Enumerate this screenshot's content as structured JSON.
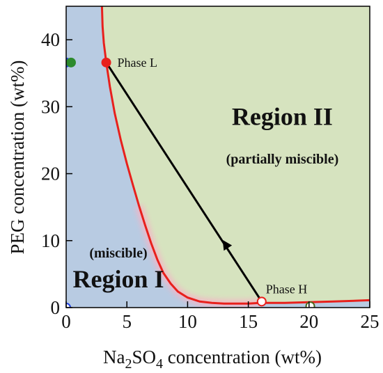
{
  "colors": {
    "region_one": "#b8cbe2",
    "region_two": "#d6e3bf",
    "binodal": "#e8201c",
    "pink_glow": "#f4b6c6",
    "tie_line": "#000000",
    "marker_red": "#e8201c",
    "marker_blue": "#1f3fe0",
    "marker_green": "#2d8a2d",
    "marker_olive": "#4f6a1e"
  },
  "chart_data": {
    "type": "scatter",
    "xlabel_main": "Na",
    "xlabel_sub1": "2",
    "xlabel_mid": "SO",
    "xlabel_sub2": "4",
    "xlabel_rest": " concentration  (wt%)",
    "ylabel": "PEG concentration  (wt%)",
    "xlim": [
      0,
      25
    ],
    "ylim": [
      0,
      45
    ],
    "x_ticks": [
      "0",
      "5",
      "10",
      "15",
      "20",
      "25"
    ],
    "x_tick_values": [
      0,
      5,
      10,
      15,
      20,
      25
    ],
    "y_ticks": [
      "0",
      "10",
      "20",
      "30",
      "40"
    ],
    "y_tick_values": [
      0,
      10,
      20,
      30,
      40
    ],
    "binodal_curve": {
      "x": [
        2.95,
        3.0,
        3.1,
        3.3,
        3.6,
        4.0,
        4.5,
        5.0,
        5.5,
        6.0,
        6.5,
        7.0,
        7.5,
        8.0,
        8.6,
        9.2,
        10.0,
        11.0,
        12.0,
        13.0,
        14.0,
        15.0,
        16.0,
        18.0,
        20.0,
        22.0,
        25.0
      ],
      "y": [
        45.0,
        42.0,
        39.5,
        36.6,
        33.0,
        29.0,
        25.0,
        21.5,
        18.3,
        15.2,
        12.3,
        9.6,
        7.2,
        5.2,
        3.6,
        2.4,
        1.5,
        0.9,
        0.7,
        0.6,
        0.6,
        0.6,
        0.7,
        0.7,
        0.8,
        0.9,
        1.1
      ]
    },
    "tie_line": {
      "x": [
        3.3,
        16.1
      ],
      "y": [
        36.6,
        0.9
      ],
      "arrow_at": [
        13.1,
        9.5
      ]
    },
    "points": [
      {
        "x": 3.3,
        "y": 36.6,
        "label": "Phase L",
        "style": "filled-red"
      },
      {
        "x": 16.1,
        "y": 0.9,
        "label": "Phase H",
        "style": "open-red"
      },
      {
        "x": 0.0,
        "y": 36.6,
        "style": "filled-blue"
      },
      {
        "x": 0.4,
        "y": 36.6,
        "style": "filled-green"
      },
      {
        "x": 0.0,
        "y": 0.0,
        "style": "open-blue"
      },
      {
        "x": 20.1,
        "y": 0.2,
        "style": "open-olive"
      }
    ],
    "annotations": [
      {
        "text": "Region II",
        "x": 17.8,
        "y": 27.3,
        "kind": "big"
      },
      {
        "text": "(partially miscible)",
        "x": 17.8,
        "y": 21.5,
        "kind": "small"
      },
      {
        "text": "(miscible)",
        "x": 4.3,
        "y": 7.5,
        "kind": "small"
      },
      {
        "text": "Region I",
        "x": 4.3,
        "y": 3.0,
        "kind": "big"
      }
    ]
  }
}
